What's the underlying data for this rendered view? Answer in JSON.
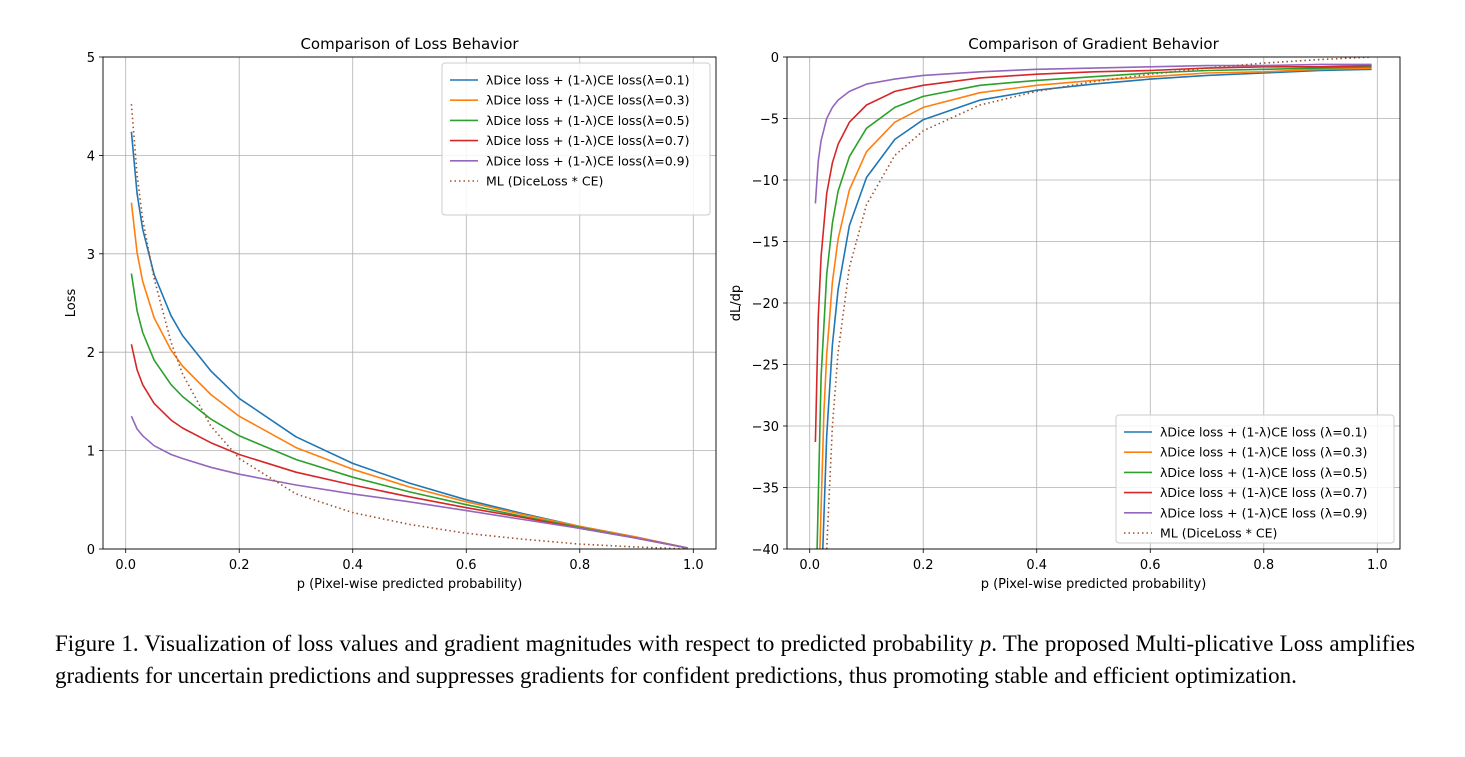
{
  "chart_data": [
    {
      "type": "line",
      "title": "Comparison of Loss Behavior",
      "xlabel": "p (Pixel-wise predicted probability)",
      "ylabel": "Loss",
      "xlim": [
        -0.04,
        1.04
      ],
      "ylim": [
        0,
        5
      ],
      "xticks": [
        0.0,
        0.2,
        0.4,
        0.6,
        0.8,
        1.0
      ],
      "xticklabels": [
        "0.0",
        "0.2",
        "0.4",
        "0.6",
        "0.8",
        "1.0"
      ],
      "yticks": [
        0,
        1,
        2,
        3,
        4,
        5
      ],
      "yticklabels": [
        "0",
        "1",
        "2",
        "3",
        "4",
        "5"
      ],
      "grid": true,
      "legend_position": "upper right",
      "x": [
        0.01,
        0.02,
        0.03,
        0.05,
        0.08,
        0.1,
        0.15,
        0.2,
        0.3,
        0.4,
        0.5,
        0.6,
        0.7,
        0.8,
        0.9,
        0.99
      ],
      "series": [
        {
          "name": "λDice loss + (1-λ)CE loss(λ=0.1)",
          "color": "#1f77b4",
          "style": "solid",
          "values": [
            4.24,
            3.61,
            3.25,
            2.79,
            2.37,
            2.17,
            1.81,
            1.53,
            1.14,
            0.87,
            0.67,
            0.5,
            0.36,
            0.23,
            0.12,
            0.01
          ]
        },
        {
          "name": "λDice loss + (1-λ)CE loss(λ=0.3)",
          "color": "#ff7f0e",
          "style": "solid",
          "values": [
            3.52,
            3.01,
            2.72,
            2.35,
            2.02,
            1.86,
            1.57,
            1.35,
            1.03,
            0.81,
            0.63,
            0.48,
            0.35,
            0.23,
            0.12,
            0.01
          ]
        },
        {
          "name": "λDice loss + (1-λ)CE loss(λ=0.5)",
          "color": "#2ca02c",
          "style": "solid",
          "values": [
            2.8,
            2.42,
            2.2,
            1.92,
            1.67,
            1.55,
            1.32,
            1.15,
            0.91,
            0.73,
            0.58,
            0.45,
            0.33,
            0.22,
            0.11,
            0.01
          ]
        },
        {
          "name": "λDice loss + (1-λ)CE loss(λ=0.7)",
          "color": "#d62728",
          "style": "solid",
          "values": [
            2.08,
            1.82,
            1.67,
            1.48,
            1.31,
            1.23,
            1.08,
            0.96,
            0.78,
            0.65,
            0.53,
            0.42,
            0.32,
            0.21,
            0.11,
            0.01
          ]
        },
        {
          "name": "λDice loss + (1-λ)CE loss(λ=0.9)",
          "color": "#9467bd",
          "style": "solid",
          "values": [
            1.35,
            1.22,
            1.15,
            1.05,
            0.96,
            0.92,
            0.83,
            0.76,
            0.65,
            0.56,
            0.48,
            0.39,
            0.3,
            0.21,
            0.11,
            0.01
          ]
        },
        {
          "name": "ML (DiceLoss * CE)",
          "color": "#a0522d",
          "style": "dotted",
          "values": [
            4.52,
            3.8,
            3.35,
            2.75,
            2.1,
            1.78,
            1.25,
            0.92,
            0.56,
            0.37,
            0.25,
            0.16,
            0.1,
            0.05,
            0.02,
            0.0
          ]
        }
      ]
    },
    {
      "type": "line",
      "title": "Comparison of Gradient Behavior",
      "xlabel": "p (Pixel-wise predicted probability)",
      "ylabel": "dL/dp",
      "xlim": [
        -0.04,
        1.04
      ],
      "ylim": [
        -40,
        0
      ],
      "xticks": [
        0.0,
        0.2,
        0.4,
        0.6,
        0.8,
        1.0
      ],
      "xticklabels": [
        "0.0",
        "0.2",
        "0.4",
        "0.6",
        "0.8",
        "1.0"
      ],
      "yticks": [
        0,
        -5,
        -10,
        -15,
        -20,
        -25,
        -30,
        -35,
        -40
      ],
      "yticklabels": [
        "0",
        "−5",
        "−10",
        "−15",
        "−20",
        "−25",
        "−30",
        "−35",
        "−40"
      ],
      "grid": true,
      "legend_position": "lower right",
      "series": [
        {
          "name": "λDice loss + (1-λ)CE loss (λ=0.1)",
          "color": "#1f77b4",
          "style": "solid",
          "x": [
            0.023,
            0.03,
            0.04,
            0.05,
            0.07,
            0.1,
            0.15,
            0.2,
            0.3,
            0.4,
            0.5,
            0.6,
            0.7,
            0.8,
            0.9,
            0.99
          ],
          "values": [
            -40,
            -30.8,
            -23.4,
            -18.9,
            -13.7,
            -9.8,
            -6.7,
            -5.1,
            -3.5,
            -2.7,
            -2.2,
            -1.8,
            -1.5,
            -1.3,
            -1.1,
            -1.0
          ]
        },
        {
          "name": "λDice loss + (1-λ)CE loss (λ=0.3)",
          "color": "#ff7f0e",
          "style": "solid",
          "x": [
            0.018,
            0.025,
            0.03,
            0.04,
            0.05,
            0.07,
            0.1,
            0.15,
            0.2,
            0.3,
            0.4,
            0.5,
            0.6,
            0.7,
            0.8,
            0.9,
            0.99
          ],
          "values": [
            -40,
            -28.9,
            -24.2,
            -18.3,
            -14.8,
            -10.8,
            -7.7,
            -5.3,
            -4.1,
            -2.9,
            -2.3,
            -1.9,
            -1.6,
            -1.3,
            -1.2,
            -1.0,
            -0.9
          ]
        },
        {
          "name": "λDice loss + (1-λ)CE loss (λ=0.5)",
          "color": "#2ca02c",
          "style": "solid",
          "x": [
            0.013,
            0.02,
            0.03,
            0.04,
            0.05,
            0.07,
            0.1,
            0.15,
            0.2,
            0.3,
            0.4,
            0.5,
            0.6,
            0.7,
            0.8,
            0.9,
            0.99
          ],
          "values": [
            -40,
            -26.0,
            -17.7,
            -13.5,
            -10.9,
            -8.1,
            -5.8,
            -4.1,
            -3.2,
            -2.3,
            -1.9,
            -1.6,
            -1.3,
            -1.1,
            -1.0,
            -0.9,
            -0.8
          ]
        },
        {
          "name": "λDice loss + (1-λ)CE loss (λ=0.7)",
          "color": "#d62728",
          "style": "solid",
          "x": [
            0.01,
            0.015,
            0.02,
            0.03,
            0.04,
            0.05,
            0.07,
            0.1,
            0.15,
            0.2,
            0.3,
            0.4,
            0.5,
            0.6,
            0.7,
            0.8,
            0.9,
            0.99
          ],
          "values": [
            -31.3,
            -21.3,
            -16.2,
            -11.1,
            -8.6,
            -7.1,
            -5.3,
            -3.9,
            -2.8,
            -2.3,
            -1.7,
            -1.4,
            -1.2,
            -1.1,
            -0.9,
            -0.8,
            -0.8,
            -0.7
          ]
        },
        {
          "name": "λDice loss + (1-λ)CE loss (λ=0.9)",
          "color": "#9467bd",
          "style": "solid",
          "x": [
            0.01,
            0.015,
            0.02,
            0.03,
            0.04,
            0.05,
            0.07,
            0.1,
            0.15,
            0.2,
            0.3,
            0.4,
            0.5,
            0.6,
            0.7,
            0.8,
            0.9,
            0.99
          ],
          "values": [
            -11.9,
            -8.5,
            -6.8,
            -5.0,
            -4.1,
            -3.5,
            -2.8,
            -2.2,
            -1.8,
            -1.5,
            -1.2,
            -1.0,
            -0.9,
            -0.8,
            -0.7,
            -0.7,
            -0.6,
            -0.6
          ]
        },
        {
          "name": "ML (DiceLoss * CE)",
          "color": "#a0522d",
          "style": "dotted",
          "x": [
            0.03,
            0.04,
            0.05,
            0.07,
            0.1,
            0.15,
            0.2,
            0.3,
            0.4,
            0.5,
            0.6,
            0.7,
            0.8,
            0.9,
            0.99
          ],
          "values": [
            -40,
            -30.0,
            -24.0,
            -17.1,
            -12.0,
            -8.0,
            -6.0,
            -3.9,
            -2.8,
            -2.0,
            -1.4,
            -0.9,
            -0.5,
            -0.2,
            0.0
          ]
        }
      ]
    }
  ],
  "caption": {
    "prefix": "Figure 1.  Visualization of loss values and gradient magnitudes with respect to predicted probability ",
    "variable": "p",
    "suffix": ".  The proposed Multi-plicative Loss amplifies gradients for uncertain predictions and suppresses gradients for confident predictions, thus promoting stable and efficient optimization."
  }
}
